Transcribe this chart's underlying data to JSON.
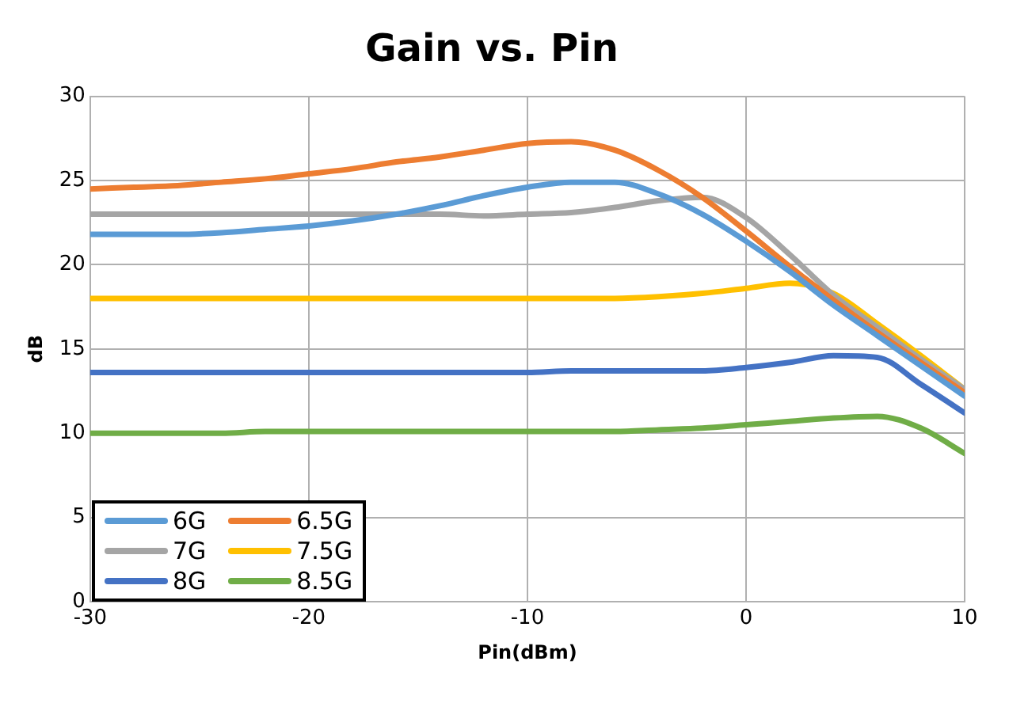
{
  "chart_data": {
    "type": "line",
    "title": "Gain vs. Pin",
    "xlabel": "Pin(dBm)",
    "ylabel": "dB",
    "x": [
      -30,
      -28,
      -26,
      -24,
      -22,
      -20,
      -18,
      -16,
      -14,
      -12,
      -10,
      -8,
      -6,
      -4,
      -2,
      0,
      2,
      4,
      6,
      8,
      10
    ],
    "xlim": [
      -30,
      10
    ],
    "xticks": [
      -30,
      -20,
      -10,
      0,
      10
    ],
    "ylim": [
      0,
      30
    ],
    "yticks": [
      0,
      5,
      10,
      15,
      20,
      25,
      30
    ],
    "grid": true,
    "legend": "bottom left",
    "marker": "none",
    "line_style": "solid",
    "series": [
      {
        "name": "6G",
        "color": "#5b9bd5",
        "values": [
          21.8,
          21.8,
          21.8,
          21.9,
          22.1,
          22.3,
          22.6,
          23,
          23.5,
          24.1,
          24.6,
          24.9,
          24.9,
          24.2,
          23,
          21.4,
          19.6,
          17.6,
          15.8,
          14,
          12.2
        ]
      },
      {
        "name": "6.5G",
        "color": "#ed7d31",
        "values": [
          24.5,
          24.6,
          24.7,
          24.9,
          25.1,
          25.4,
          25.7,
          26.1,
          26.4,
          26.8,
          27.2,
          27.3,
          26.8,
          25.6,
          24,
          22,
          19.9,
          17.9,
          16,
          14.2,
          12.4
        ]
      },
      {
        "name": "7G",
        "color": "#a5a5a5",
        "values": [
          23,
          23,
          23,
          23,
          23,
          23,
          23,
          23,
          23,
          22.9,
          23,
          23.1,
          23.4,
          23.8,
          24,
          22.8,
          20.6,
          18.2,
          16.3,
          14.4,
          12.6
        ]
      },
      {
        "name": "7.5G",
        "color": "#ffc000",
        "values": [
          18,
          18,
          18,
          18,
          18,
          18,
          18,
          18,
          18,
          18,
          18,
          18,
          18,
          18.1,
          18.3,
          18.6,
          18.9,
          18.3,
          16.5,
          14.6,
          12.6
        ]
      },
      {
        "name": "8G",
        "color": "#4472c4",
        "values": [
          13.6,
          13.6,
          13.6,
          13.6,
          13.6,
          13.6,
          13.6,
          13.6,
          13.6,
          13.6,
          13.6,
          13.7,
          13.7,
          13.7,
          13.7,
          13.9,
          14.2,
          14.6,
          14.5,
          12.9,
          11.2
        ]
      },
      {
        "name": "8.5G",
        "color": "#70ad47",
        "values": [
          10,
          10,
          10,
          10,
          10.1,
          10.1,
          10.1,
          10.1,
          10.1,
          10.1,
          10.1,
          10.1,
          10.1,
          10.2,
          10.3,
          10.5,
          10.7,
          10.9,
          11,
          10.3,
          8.8
        ]
      }
    ]
  }
}
